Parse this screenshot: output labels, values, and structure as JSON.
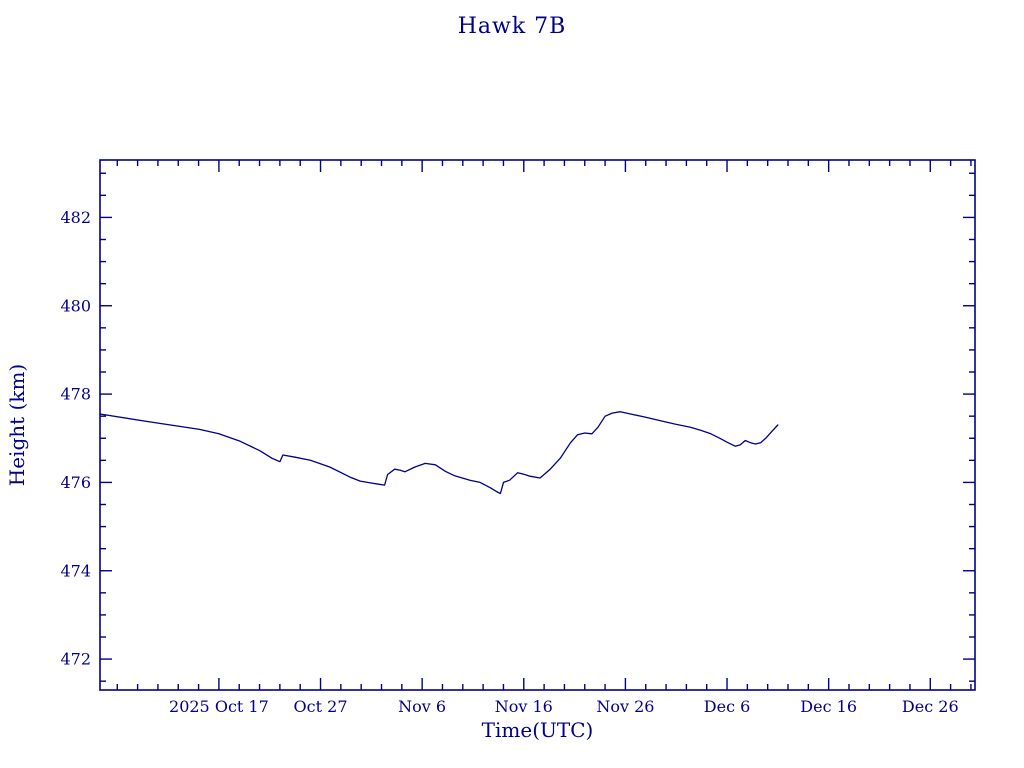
{
  "page": {
    "background": "#ffffff"
  },
  "chart_data": {
    "type": "line",
    "title": "Hawk 7B",
    "xlabel": "Time(UTC)",
    "ylabel": "Height (km)",
    "line_color": "#00008b",
    "axis_color": "#00008b",
    "legend": "none",
    "grid": false,
    "x_unit": "days since 2025-10-01",
    "x_range": [
      4.3,
      90.4
    ],
    "y_range": [
      471.3,
      483.3
    ],
    "x_ticks": [
      {
        "day": 16,
        "label": "2025 Oct 17"
      },
      {
        "day": 26,
        "label": "Oct 27"
      },
      {
        "day": 36,
        "label": "Nov 6"
      },
      {
        "day": 46,
        "label": "Nov 16"
      },
      {
        "day": 56,
        "label": "Nov 26"
      },
      {
        "day": 66,
        "label": "Dec 6"
      },
      {
        "day": 76,
        "label": "Dec 16"
      },
      {
        "day": 86,
        "label": "Dec 26"
      }
    ],
    "y_ticks": [
      472,
      474,
      476,
      478,
      480,
      482
    ],
    "minor_x_step_days": 2,
    "minor_y_step_km": 0.5,
    "series": [
      {
        "name": "Hawk 7B height",
        "x": [
          4.3,
          9.2,
          14.1,
          16.0,
          18.1,
          20.0,
          21.2,
          22.0,
          22.3,
          23.5,
          25.0,
          26.9,
          28.9,
          29.9,
          30.9,
          31.7,
          32.3,
          32.6,
          33.3,
          33.8,
          34.3,
          35.3,
          36.3,
          37.3,
          38.3,
          39.2,
          40.7,
          41.7,
          42.7,
          43.4,
          43.7,
          44.0,
          44.6,
          45.4,
          46.1,
          46.6,
          47.6,
          48.6,
          49.6,
          50.6,
          51.3,
          52.0,
          52.7,
          53.3,
          54.0,
          54.7,
          55.5,
          56.5,
          57.9,
          59.4,
          60.9,
          62.4,
          63.4,
          64.4,
          65.3,
          66.1,
          66.8,
          67.3,
          67.8,
          68.3,
          68.8,
          69.3,
          69.8,
          70.4,
          71.0
        ],
        "y": [
          477.55,
          477.37,
          477.2,
          477.1,
          476.93,
          476.72,
          476.55,
          476.47,
          476.62,
          476.57,
          476.5,
          476.35,
          476.12,
          476.03,
          475.99,
          475.96,
          475.94,
          476.18,
          476.3,
          476.28,
          476.24,
          476.35,
          476.43,
          476.4,
          476.25,
          476.15,
          476.05,
          476.0,
          475.88,
          475.78,
          475.75,
          476.0,
          476.05,
          476.22,
          476.18,
          476.14,
          476.1,
          476.3,
          476.55,
          476.9,
          477.08,
          477.12,
          477.1,
          477.25,
          477.5,
          477.57,
          477.6,
          477.55,
          477.48,
          477.4,
          477.32,
          477.25,
          477.18,
          477.1,
          477.0,
          476.9,
          476.82,
          476.85,
          476.95,
          476.9,
          476.87,
          476.9,
          477.0,
          477.15,
          477.3
        ]
      }
    ]
  }
}
